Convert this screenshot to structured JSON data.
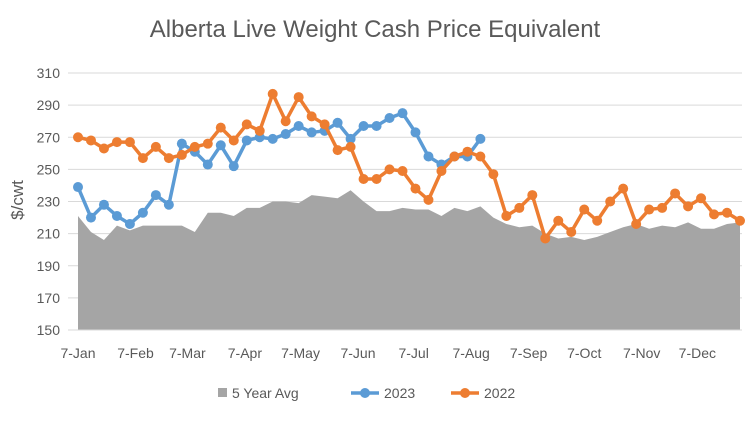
{
  "chart_data": {
    "type": "line",
    "title": "Alberta Live Weight Cash Price Equivalent",
    "ylabel": "$/cwt",
    "xlabel": "",
    "ylim": [
      150,
      310
    ],
    "yticks": [
      150,
      170,
      190,
      210,
      230,
      250,
      270,
      290,
      310
    ],
    "xticks": [
      "7-Jan",
      "7-Feb",
      "7-Mar",
      "7-Apr",
      "7-May",
      "7-Jun",
      "7-Jul",
      "7-Aug",
      "7-Sep",
      "7-Oct",
      "7-Nov",
      "7-Dec"
    ],
    "grid": true,
    "legend": "bottom",
    "series": [
      {
        "name": "5 Year Avg",
        "type": "area",
        "color": "#a5a5a5",
        "values": [
          221,
          211,
          206,
          215,
          212,
          215,
          215,
          215,
          215,
          211,
          223,
          223,
          221,
          226,
          226,
          230,
          230,
          229,
          234,
          233,
          232,
          237,
          230,
          224,
          224,
          226,
          225,
          225,
          221,
          226,
          224,
          227,
          220,
          216,
          214,
          215,
          210,
          207,
          208,
          206,
          208,
          211,
          214,
          216,
          213,
          215,
          214,
          217,
          213,
          213,
          216,
          217
        ]
      },
      {
        "name": "2023",
        "type": "line",
        "color": "#5b9bd5",
        "values": [
          239,
          220,
          228,
          221,
          216,
          223,
          234,
          228,
          266,
          261,
          253,
          265,
          252,
          268,
          270,
          269,
          272,
          277,
          273,
          274,
          279,
          269,
          277,
          277,
          282,
          285,
          273,
          258,
          253,
          258,
          258,
          269
        ]
      },
      {
        "name": "2022",
        "type": "line",
        "color": "#ed7d31",
        "values": [
          270,
          268,
          263,
          267,
          267,
          257,
          264,
          257,
          259,
          264,
          266,
          276,
          268,
          278,
          274,
          297,
          280,
          295,
          283,
          278,
          262,
          264,
          244,
          244,
          250,
          249,
          238,
          231,
          249,
          258,
          261,
          258,
          247,
          221,
          226,
          234,
          207,
          218,
          211,
          225,
          218,
          230,
          238,
          216,
          225,
          226,
          235,
          227,
          232,
          222,
          223,
          218
        ]
      }
    ]
  }
}
